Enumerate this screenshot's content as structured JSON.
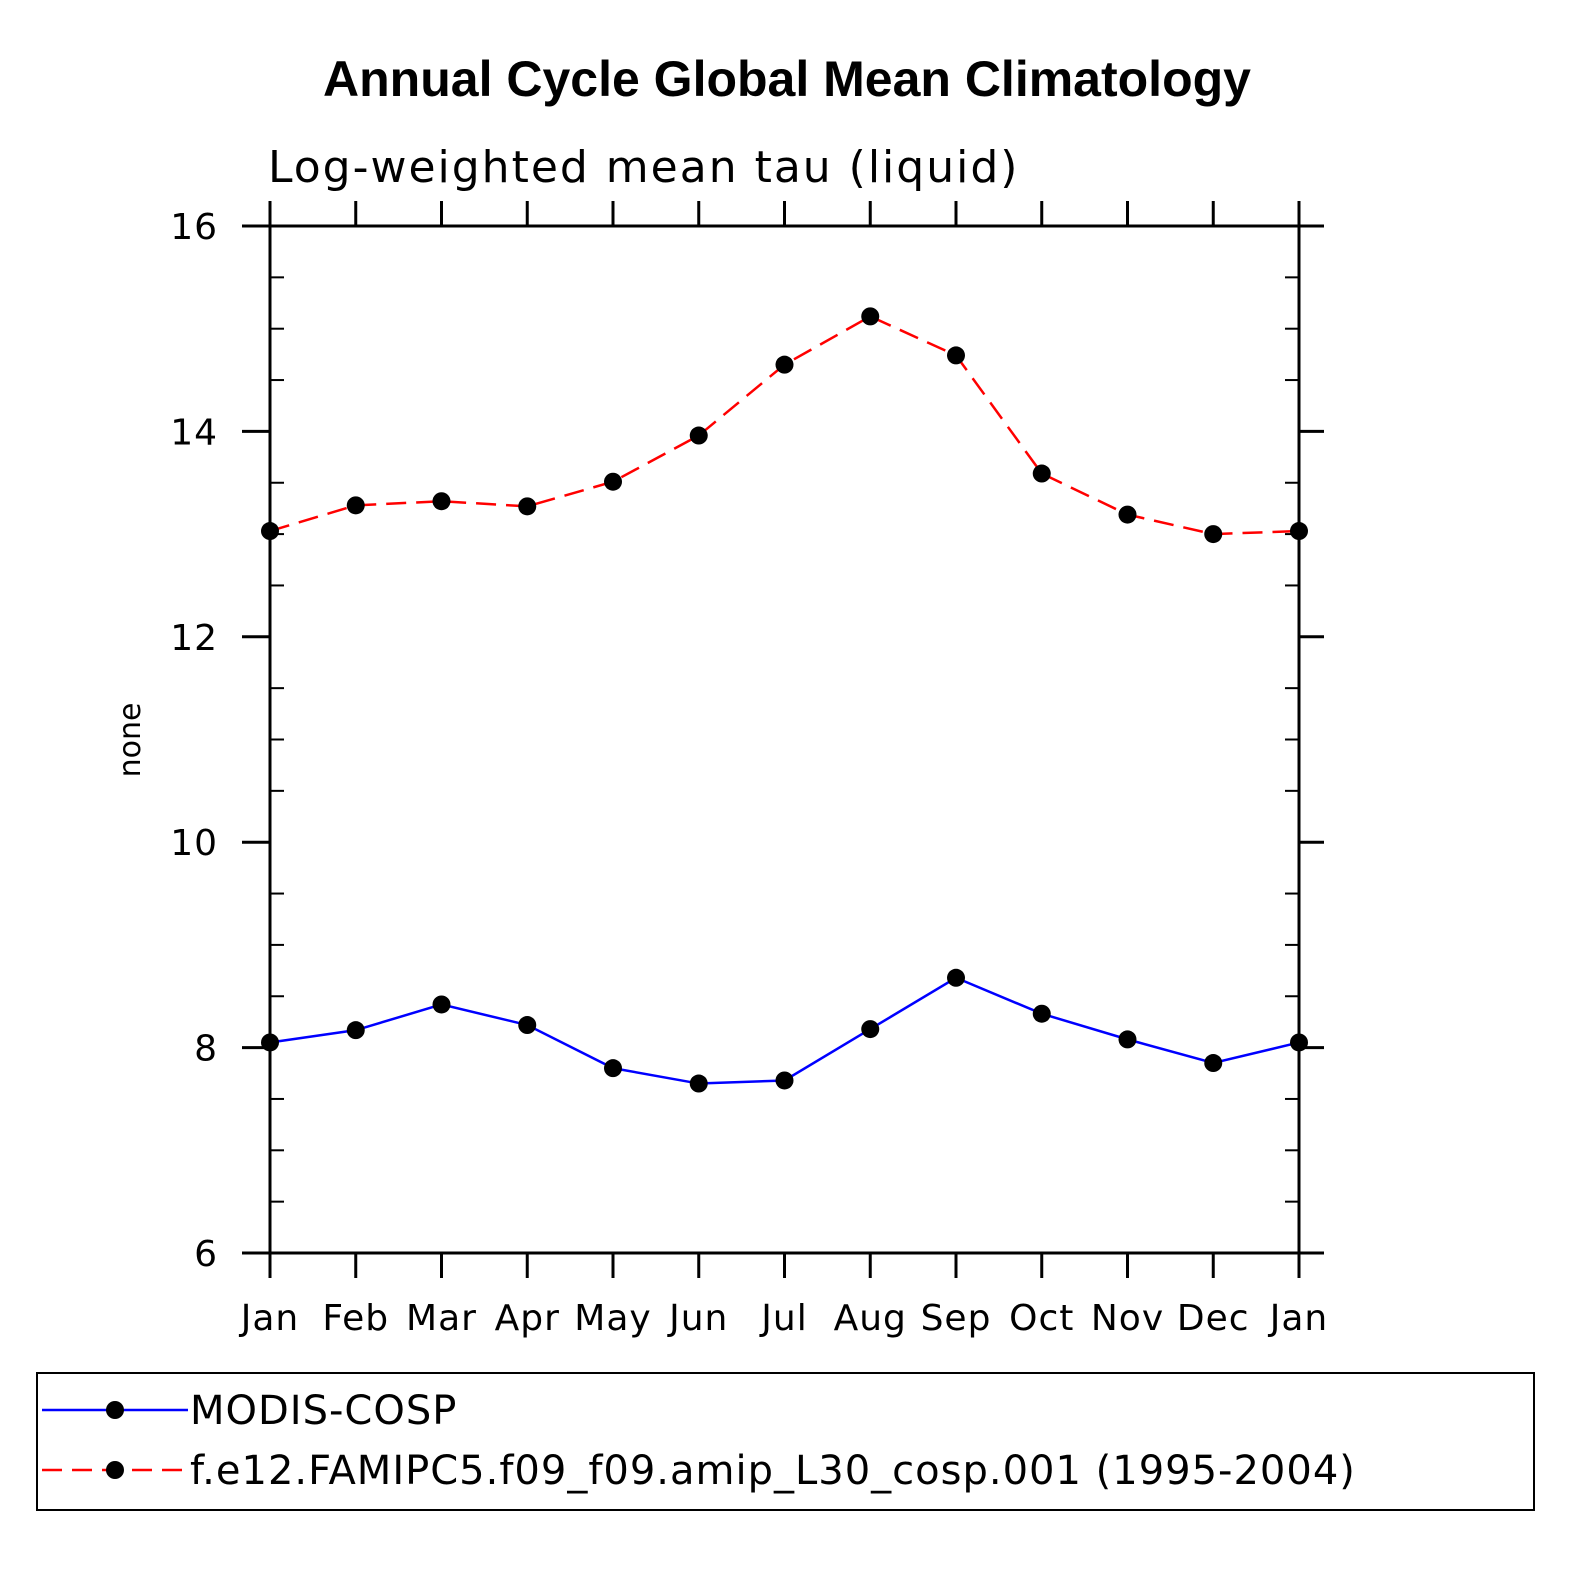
{
  "chart_data": {
    "type": "line",
    "title": "Annual Cycle Global Mean Climatology",
    "subtitle": "Log-weighted mean tau (liquid)",
    "xlabel": "",
    "ylabel": "none",
    "categories": [
      "Jan",
      "Feb",
      "Mar",
      "Apr",
      "May",
      "Jun",
      "Jul",
      "Aug",
      "Sep",
      "Oct",
      "Nov",
      "Dec",
      "Jan"
    ],
    "ylim": [
      6,
      16
    ],
    "yticks": [
      6,
      8,
      10,
      12,
      14,
      16
    ],
    "yminor_step": 0.5,
    "grid": false,
    "legend_position": "bottom",
    "series": [
      {
        "name": "MODIS-COSP",
        "color": "#0000ff",
        "dash": "solid",
        "marker": "circle",
        "values": [
          8.05,
          8.17,
          8.42,
          8.22,
          7.8,
          7.65,
          7.68,
          8.18,
          8.68,
          8.33,
          8.08,
          7.85,
          8.05
        ]
      },
      {
        "name": "f.e12.FAMIPC5.f09_f09.amip_L30_cosp.001 (1995-2004)",
        "color": "#ff0000",
        "dash": "dashed",
        "marker": "circle",
        "values": [
          13.03,
          13.28,
          13.32,
          13.27,
          13.51,
          13.96,
          14.65,
          15.12,
          14.74,
          13.59,
          13.19,
          13.0,
          13.03
        ]
      }
    ]
  }
}
